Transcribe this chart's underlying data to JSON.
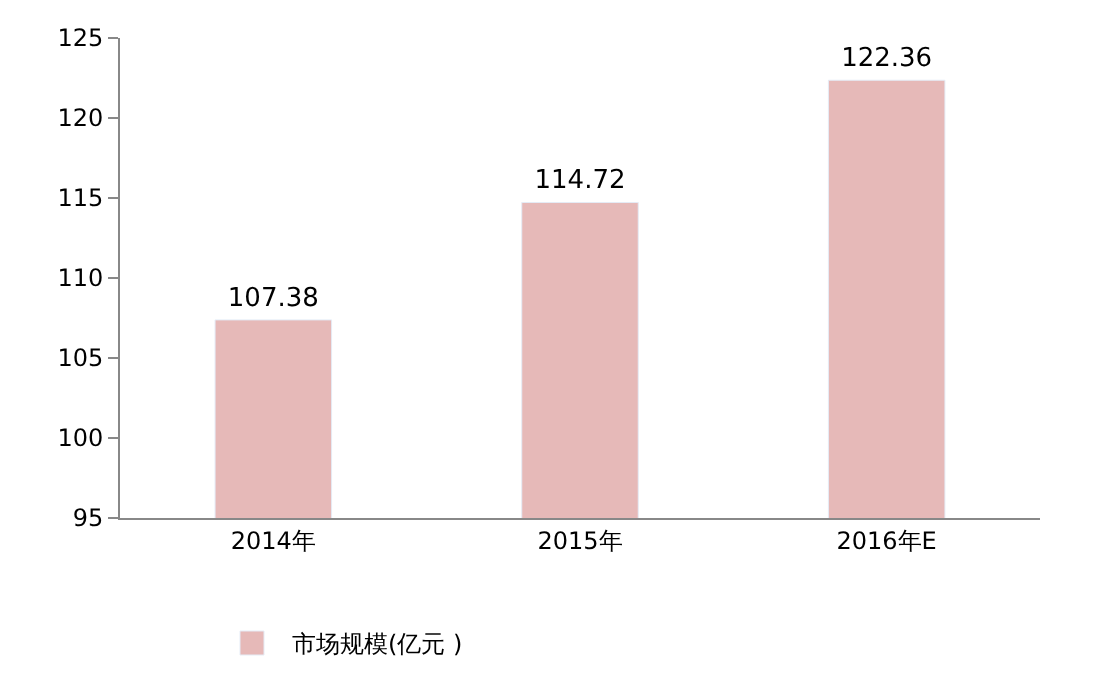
{
  "chart_data": {
    "type": "bar",
    "categories": [
      "2014年",
      "2015年",
      "2016年E"
    ],
    "series": [
      {
        "name": "市场规模(亿元 )",
        "color": "#e6b9b8",
        "values": [
          107.38,
          114.72,
          122.36
        ]
      }
    ],
    "ylim": [
      95,
      125
    ],
    "yticks": [
      95,
      100,
      105,
      110,
      115,
      120,
      125
    ],
    "data_labels": true,
    "legend": "bottom"
  }
}
